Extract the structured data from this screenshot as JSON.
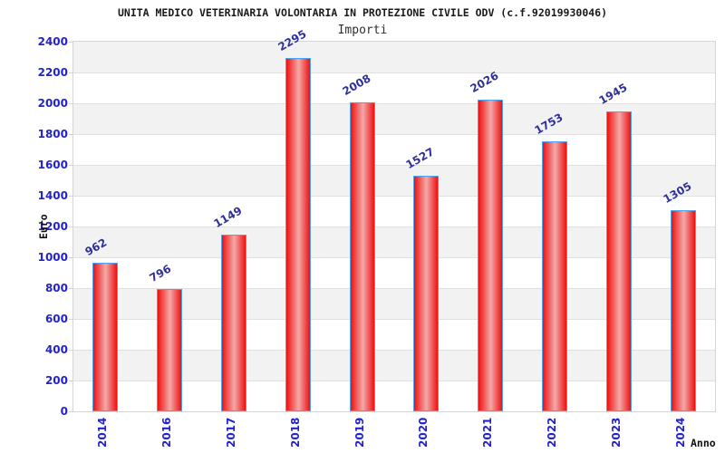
{
  "chart_data": {
    "type": "bar",
    "title": "UNITA MEDICO VETERINARIA VOLONTARIA IN PROTEZIONE CIVILE ODV (c.f.92019930046)",
    "subtitle": "Importi",
    "xlabel": "Anno",
    "ylabel": "Euro",
    "categories": [
      "2014",
      "2016",
      "2017",
      "2018",
      "2019",
      "2020",
      "2021",
      "2022",
      "2023",
      "2024"
    ],
    "values": [
      962,
      796,
      1149,
      2295,
      2008,
      1527,
      2026,
      1753,
      1945,
      1305
    ],
    "ylim": [
      0,
      2400
    ],
    "ytick_step": 200,
    "yticks": [
      0,
      200,
      400,
      600,
      800,
      1000,
      1200,
      1400,
      1600,
      1800,
      2000,
      2200,
      2400
    ],
    "grid": "alternating-horizontal-bands",
    "legend": null,
    "colors": {
      "bar_fill": "#ee1111",
      "bar_fill_highlight": "#f4a9a9",
      "bar_border": "#4da3ee",
      "axis_tick_label": "#2323cd",
      "value_label": "#30309a",
      "band_shade": "#f2f2f2",
      "band_plain": "#ffffff",
      "grid_line": "#e0e0e0",
      "plot_border": "#d6d6d6",
      "title": "#1a1a1a",
      "subtitle": "#2e2e2e",
      "axis_title": "#111111"
    }
  }
}
